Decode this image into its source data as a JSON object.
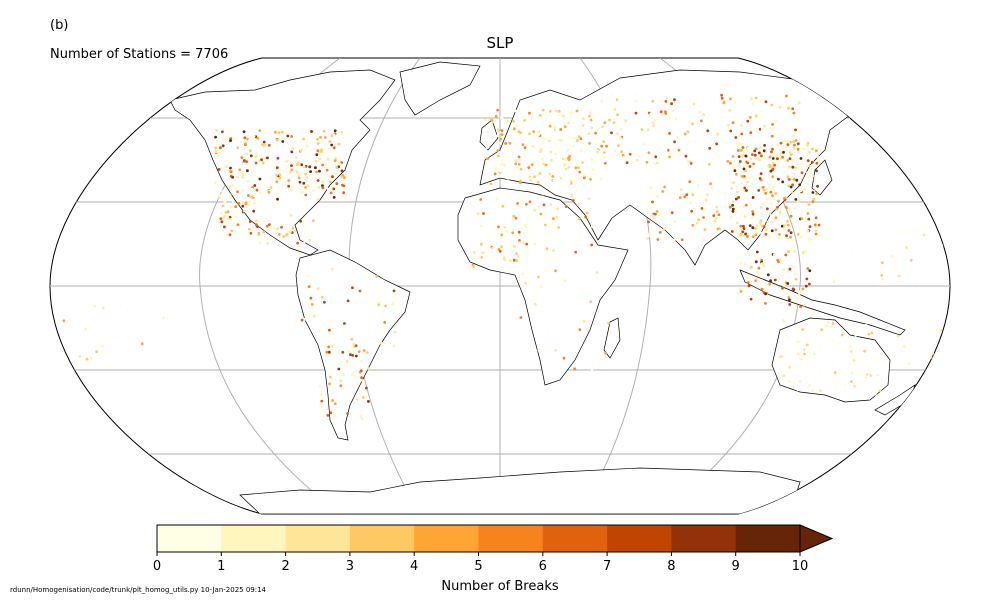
{
  "panel_label": "(b)",
  "stations_text": "Number of Stations = 7706",
  "title": "SLP",
  "colorbar": {
    "label": "Number of Breaks",
    "ticks": [
      "0",
      "1",
      "2",
      "3",
      "4",
      "5",
      "6",
      "7",
      "8",
      "9",
      "10"
    ],
    "colors": [
      "#ffffe5",
      "#fff6bd",
      "#fee597",
      "#fec963",
      "#fea535",
      "#f7831e",
      "#e0610e",
      "#c04503",
      "#92310a",
      "#662506"
    ],
    "extend": "max"
  },
  "footer": "rdunn/Homogenisation/code/trunk/plt_homog_utils.py   10-Jan-2025 09:14",
  "map": {
    "projection": "Robinson",
    "gridlines": true,
    "meridians_deg": [
      -180,
      -120,
      -60,
      0,
      60,
      120,
      180
    ],
    "parallels_deg": [
      -60,
      -30,
      0,
      30,
      60
    ],
    "regions": [
      {
        "name": "North America",
        "level": "mixed, dense east US"
      },
      {
        "name": "Europe",
        "level": "low-moderate"
      },
      {
        "name": "East Asia",
        "level": "high"
      },
      {
        "name": "South America",
        "level": "moderate"
      },
      {
        "name": "Africa",
        "level": "sparse"
      },
      {
        "name": "Australia",
        "level": "low"
      }
    ]
  }
}
